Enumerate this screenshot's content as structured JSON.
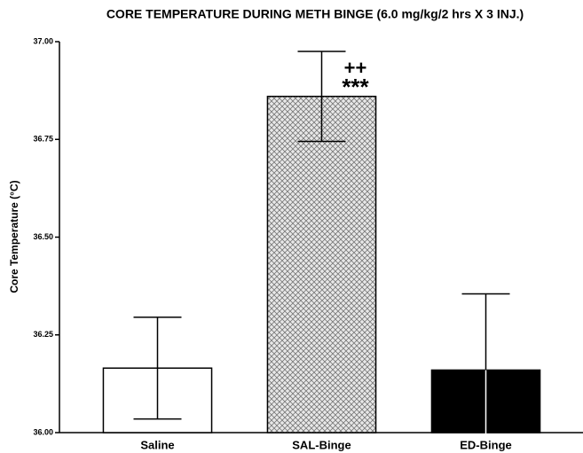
{
  "chart_data": {
    "type": "bar",
    "title": "CORE TEMPERATURE DURING METH BINGE (6.0 mg/kg/2 hrs X 3 INJ.)",
    "y_label": "Core Temperature (°C)",
    "categories": [
      "Saline",
      "SAL-Binge",
      "ED-Binge"
    ],
    "values": [
      36.165,
      36.86,
      36.16
    ],
    "errors": [
      0.13,
      0.115,
      0.195
    ],
    "colors": [
      "#ffffff",
      "#d8d8d8",
      "#000000"
    ],
    "hatch": [
      false,
      true,
      false
    ],
    "annotations": [
      "++",
      "***"
    ],
    "ylim": [
      36.0,
      37.0
    ],
    "yticks": [
      {
        "value": 36.0,
        "label": "36.00"
      },
      {
        "value": 36.25,
        "label": "36.25"
      },
      {
        "value": 36.5,
        "label": "36.50"
      },
      {
        "value": 36.75,
        "label": "36.75"
      },
      {
        "value": 37.0,
        "label": "37.00"
      }
    ]
  }
}
